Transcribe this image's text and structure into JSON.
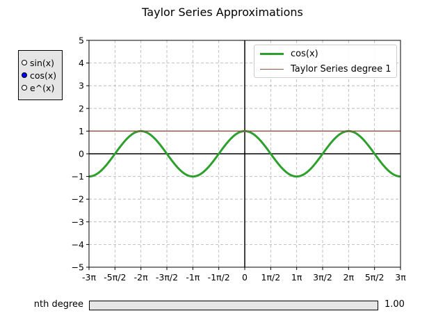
{
  "chart_data": {
    "type": "line",
    "title": "Taylor Series Approximations",
    "xlabel": "",
    "ylabel": "",
    "xlim_pi": [
      -3,
      3
    ],
    "ylim": [
      -5,
      5
    ],
    "x_tick_labels": [
      "-3π",
      "-5π/2",
      "-2π",
      "-3π/2",
      "-1π",
      "-1π/2",
      "0",
      "1π/2",
      "1π",
      "3π/2",
      "2π",
      "5π/2",
      "3π"
    ],
    "y_tick_labels": [
      "−5",
      "−4",
      "−3",
      "−2",
      "−1",
      "0",
      "1",
      "2",
      "3",
      "4",
      "5"
    ],
    "grid": true,
    "legend_position": "upper right",
    "series": [
      {
        "name": "cos(x)",
        "function": "cos",
        "color": "#2ca02c",
        "line_width": 3
      },
      {
        "name": "Taylor Series degree 1",
        "function": "constant",
        "value": 1,
        "color": "#8c564b",
        "line_width": 1.5
      }
    ]
  },
  "controls": {
    "function_options": [
      "sin(x)",
      "cos(x)",
      "e^(x)"
    ],
    "selected_function": "cos(x)",
    "slider_label": "nth degree",
    "slider_value_text": "1.00",
    "slider_fraction": 0.0
  }
}
